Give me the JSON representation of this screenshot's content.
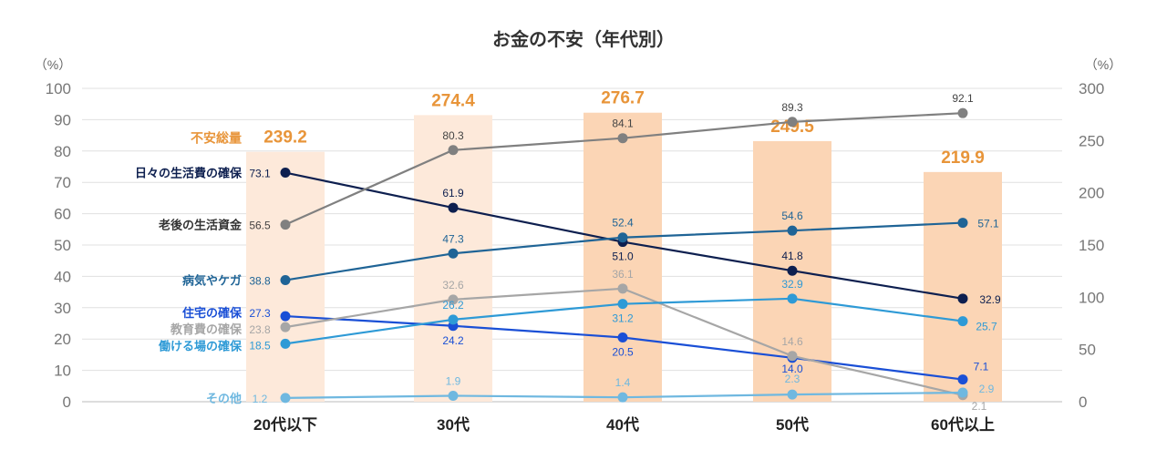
{
  "chart_data": {
    "type": "bar+line",
    "title": "お金の不安（年代別）",
    "left_axis_unit": "（%）",
    "right_axis_unit": "（%）",
    "left_ylim": [
      0,
      100
    ],
    "right_ylim": [
      0,
      300
    ],
    "left_ticks": [
      0,
      10,
      20,
      30,
      40,
      50,
      60,
      70,
      80,
      90,
      100
    ],
    "right_ticks": [
      0,
      50,
      100,
      150,
      200,
      250,
      300
    ],
    "categories": [
      "20代以下",
      "30代",
      "40代",
      "50代",
      "60代以上"
    ],
    "bar_series": {
      "name": "不安総量",
      "values": [
        239.2,
        274.4,
        276.7,
        249.5,
        219.9
      ],
      "color": "#e8953a",
      "fills": [
        "#fde9da",
        "#fde9da",
        "#fbd5b5",
        "#fbd5b5",
        "#fbd5b5"
      ]
    },
    "series": [
      {
        "name": "日々の生活費の確保",
        "values": [
          73.1,
          61.9,
          51.0,
          41.8,
          32.9
        ],
        "color": "#0d1f4f"
      },
      {
        "name": "老後の生活資金",
        "values": [
          56.5,
          80.3,
          84.1,
          89.3,
          92.1
        ],
        "color": "#808080"
      },
      {
        "name": "病気やケガ",
        "values": [
          38.8,
          47.3,
          52.4,
          54.6,
          57.1
        ],
        "color": "#1f6496"
      },
      {
        "name": "住宅の確保",
        "values": [
          27.3,
          24.2,
          20.5,
          14.0,
          7.1
        ],
        "color": "#1a4fd6"
      },
      {
        "name": "教育費の確保",
        "values": [
          23.8,
          32.6,
          36.1,
          14.6,
          2.1
        ],
        "color": "#a6a6a6"
      },
      {
        "name": "働ける場の確保",
        "values": [
          18.5,
          26.2,
          31.2,
          32.9,
          25.7
        ],
        "color": "#2e9ad6"
      },
      {
        "name": "その他",
        "values": [
          1.2,
          1.9,
          1.4,
          2.3,
          2.9
        ],
        "color": "#6fb8e0"
      }
    ],
    "grid": true
  }
}
